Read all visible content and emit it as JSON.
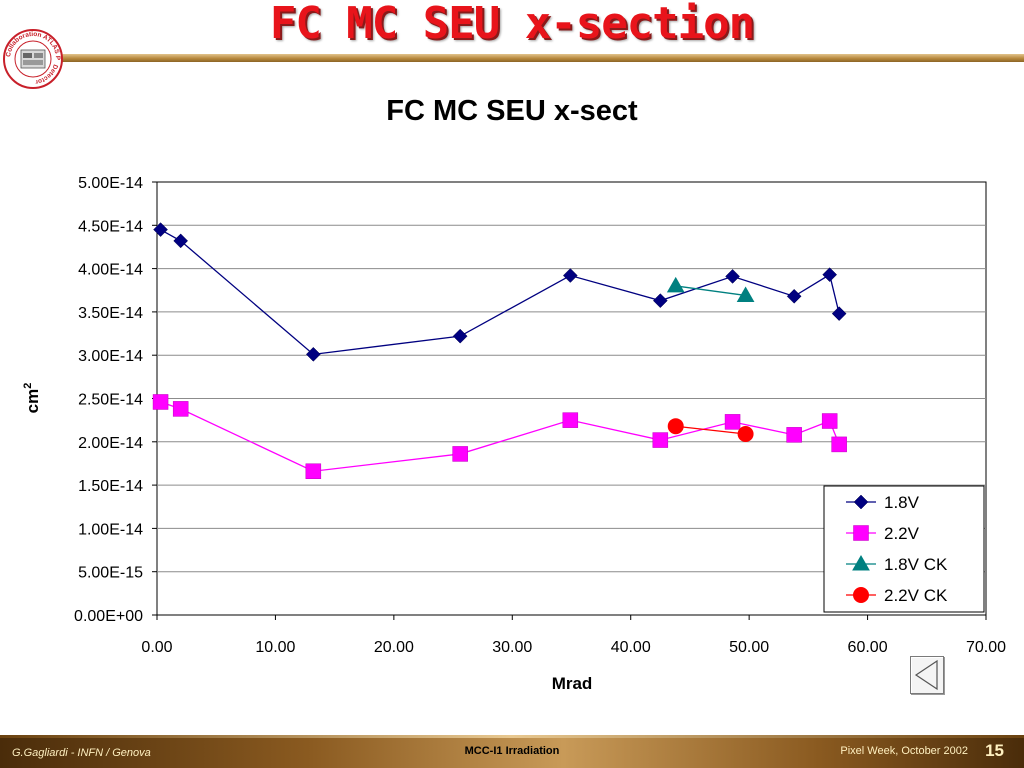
{
  "slide": {
    "title": "FC MC SEU x-section",
    "logo_text": "ATLAS Pixel Detector Collaboration"
  },
  "chart_data": {
    "type": "line",
    "title": "FC MC SEU x-sect",
    "xlabel": "Mrad",
    "ylabel": "cm",
    "ylabel_superscript": "2",
    "xlim": [
      0,
      70
    ],
    "ylim": [
      0,
      5e-14
    ],
    "grid": "horizontal",
    "legend_position": "bottom-right",
    "x_ticks": [
      "0.00",
      "10.00",
      "20.00",
      "30.00",
      "40.00",
      "50.00",
      "60.00",
      "70.00"
    ],
    "x_tick_values": [
      0,
      10,
      20,
      30,
      40,
      50,
      60,
      70
    ],
    "y_ticks": [
      "0.00E+00",
      "5.00E-15",
      "1.00E-14",
      "1.50E-14",
      "2.00E-14",
      "2.50E-14",
      "3.00E-14",
      "3.50E-14",
      "4.00E-14",
      "4.50E-14",
      "5.00E-14"
    ],
    "y_tick_values": [
      0,
      5e-15,
      1e-14,
      1.5e-14,
      2e-14,
      2.5e-14,
      3e-14,
      3.5e-14,
      4e-14,
      4.5e-14,
      5e-14
    ],
    "series": [
      {
        "name": "1.8V",
        "color": "#000080",
        "marker": "diamond",
        "x": [
          0.3,
          2.0,
          13.2,
          25.6,
          34.9,
          42.5,
          48.6,
          53.8,
          56.8,
          57.6
        ],
        "y": [
          4.45e-14,
          4.32e-14,
          3.01e-14,
          3.22e-14,
          3.92e-14,
          3.63e-14,
          3.91e-14,
          3.68e-14,
          3.93e-14,
          3.48e-14
        ]
      },
      {
        "name": "2.2V",
        "color": "#ff00ff",
        "marker": "square",
        "x": [
          0.3,
          2.0,
          13.2,
          25.6,
          34.9,
          42.5,
          48.6,
          53.8,
          56.8,
          57.6
        ],
        "y": [
          2.46e-14,
          2.38e-14,
          1.66e-14,
          1.86e-14,
          2.25e-14,
          2.02e-14,
          2.23e-14,
          2.08e-14,
          2.24e-14,
          1.97e-14
        ]
      },
      {
        "name": "1.8V CK",
        "color": "#008080",
        "marker": "triangle",
        "x": [
          43.8,
          49.7
        ],
        "y": [
          3.8e-14,
          3.69e-14
        ]
      },
      {
        "name": "2.2V CK",
        "color": "#ff0000",
        "marker": "circle",
        "x": [
          43.8,
          49.7
        ],
        "y": [
          2.18e-14,
          2.09e-14
        ]
      }
    ]
  },
  "footer": {
    "author": "G.Gagliardi - INFN / Genova",
    "topic": "MCC-I1 Irradiation",
    "event": "Pixel Week, October 2002",
    "page": "15"
  },
  "nav": {
    "back_icon": "back-triangle-icon"
  }
}
